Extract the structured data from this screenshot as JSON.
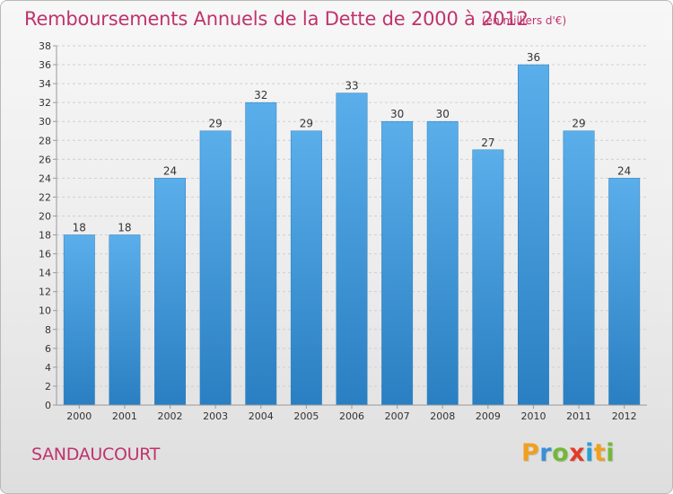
{
  "header": {
    "title": "Remboursements Annuels de la Dette de 2000 à 2012",
    "subtitle": "(en milliers d'€)"
  },
  "footer": {
    "commune": "SANDAUCOURT",
    "logo": [
      "P",
      "r",
      "o",
      "x",
      "i",
      "t",
      "i"
    ],
    "logo_colors": [
      "#f0a01e",
      "#3a8fd6",
      "#73b83a",
      "#e23b2a",
      "#2a9fd6",
      "#f0a01e",
      "#73b83a"
    ]
  },
  "colors": {
    "bar_top": "#5aaeea",
    "bar_bottom": "#2a7fc2",
    "axis_text": "#333333",
    "grid": "#cfcfcf",
    "title": "#c0336d"
  },
  "chart_data": {
    "type": "bar",
    "title": "Remboursements Annuels de la Dette de 2000 à 2012",
    "subtitle": "(en milliers d'€)",
    "xlabel": "",
    "ylabel": "",
    "categories": [
      "2000",
      "2001",
      "2002",
      "2003",
      "2004",
      "2005",
      "2006",
      "2007",
      "2008",
      "2009",
      "2010",
      "2011",
      "2012"
    ],
    "values": [
      18,
      18,
      24,
      29,
      32,
      29,
      33,
      30,
      30,
      27,
      36,
      29,
      24
    ],
    "data_labels": [
      "18",
      "18",
      "24",
      "29",
      "32",
      "29",
      "33",
      "30",
      "30",
      "27",
      "36",
      "29",
      "24"
    ],
    "ylim": [
      0,
      38
    ],
    "yticks": [
      0,
      2,
      4,
      6,
      8,
      10,
      12,
      14,
      16,
      18,
      20,
      22,
      24,
      26,
      28,
      30,
      32,
      34,
      36,
      38
    ],
    "grid": true,
    "legend": "none"
  }
}
